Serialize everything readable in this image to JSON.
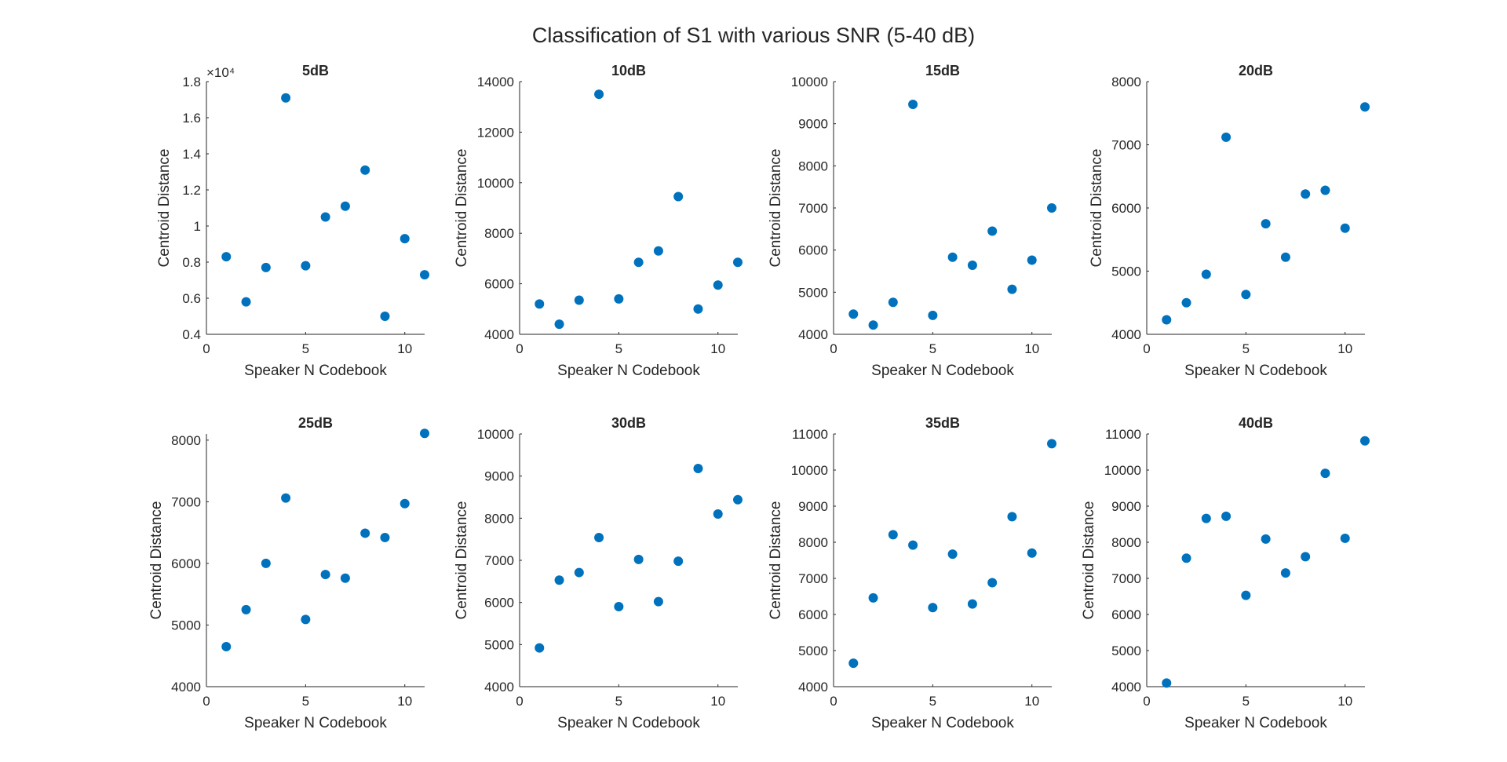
{
  "title": "Classification of S1 with various SNR (5-40 dB)",
  "colors": {
    "marker": "#0072bd",
    "axis": "#262626",
    "text": "#262626"
  },
  "chart_data": [
    {
      "type": "scatter",
      "title": "5dB",
      "xlabel": "Speaker N Codebook",
      "ylabel": "Centroid Distance",
      "xlim": [
        0,
        11
      ],
      "xticks": [
        0,
        5,
        10
      ],
      "ylim": [
        0.4,
        1.8
      ],
      "yticks": [
        0.4,
        0.6,
        0.8,
        1,
        1.2,
        1.4,
        1.6,
        1.8
      ],
      "ytick_labels": [
        "0.4",
        "0.6",
        "0.8",
        "1",
        "1.2",
        "1.4",
        "1.6",
        "1.8"
      ],
      "y_exponent_label": "×10⁴",
      "x": [
        1,
        2,
        3,
        4,
        5,
        6,
        7,
        8,
        9,
        10,
        11
      ],
      "y": [
        0.83,
        0.58,
        0.77,
        1.71,
        0.78,
        1.05,
        1.11,
        1.31,
        0.5,
        0.93,
        0.73
      ]
    },
    {
      "type": "scatter",
      "title": "10dB",
      "xlabel": "Speaker N Codebook",
      "ylabel": "Centroid Distance",
      "xlim": [
        0,
        11
      ],
      "xticks": [
        0,
        5,
        10
      ],
      "ylim": [
        4000,
        14000
      ],
      "yticks": [
        4000,
        6000,
        8000,
        10000,
        12000,
        14000
      ],
      "ytick_labels": [
        "4000",
        "6000",
        "8000",
        "10000",
        "12000",
        "14000"
      ],
      "x": [
        1,
        2,
        3,
        4,
        5,
        6,
        7,
        8,
        9,
        10,
        11
      ],
      "y": [
        5200,
        4400,
        5350,
        13500,
        5400,
        6850,
        7300,
        9450,
        5000,
        5950,
        6850
      ]
    },
    {
      "type": "scatter",
      "title": "15dB",
      "xlabel": "Speaker N Codebook",
      "ylabel": "Centroid Distance",
      "xlim": [
        0,
        11
      ],
      "xticks": [
        0,
        5,
        10
      ],
      "ylim": [
        4000,
        10000
      ],
      "yticks": [
        4000,
        5000,
        6000,
        7000,
        8000,
        9000,
        10000
      ],
      "ytick_labels": [
        "4000",
        "5000",
        "6000",
        "7000",
        "8000",
        "9000",
        "10000"
      ],
      "x": [
        1,
        2,
        3,
        4,
        5,
        6,
        7,
        8,
        9,
        10,
        11
      ],
      "y": [
        4480,
        4220,
        4760,
        9460,
        4450,
        5830,
        5640,
        6450,
        5070,
        5760,
        7000
      ]
    },
    {
      "type": "scatter",
      "title": "20dB",
      "xlabel": "Speaker N Codebook",
      "ylabel": "Centroid Distance",
      "xlim": [
        0,
        11
      ],
      "xticks": [
        0,
        5,
        10
      ],
      "ylim": [
        4000,
        8000
      ],
      "yticks": [
        4000,
        5000,
        6000,
        7000,
        8000
      ],
      "ytick_labels": [
        "4000",
        "5000",
        "6000",
        "7000",
        "8000"
      ],
      "x": [
        1,
        2,
        3,
        4,
        5,
        6,
        7,
        8,
        9,
        10,
        11
      ],
      "y": [
        4230,
        4500,
        4950,
        7120,
        4630,
        5750,
        5220,
        6220,
        6280,
        5680,
        7600
      ]
    },
    {
      "type": "scatter",
      "title": "25dB",
      "xlabel": "Speaker N Codebook",
      "ylabel": "Centroid Distance",
      "xlim": [
        0,
        11
      ],
      "xticks": [
        0,
        5,
        10
      ],
      "ylim": [
        4000,
        8100
      ],
      "yticks": [
        4000,
        5000,
        6000,
        7000,
        8000
      ],
      "ytick_labels": [
        "4000",
        "5000",
        "6000",
        "7000",
        "8000"
      ],
      "x": [
        1,
        2,
        3,
        4,
        5,
        6,
        7,
        8,
        9,
        10,
        11
      ],
      "y": [
        4650,
        5250,
        6000,
        7060,
        5090,
        5820,
        5760,
        6490,
        6420,
        6970,
        8110
      ]
    },
    {
      "type": "scatter",
      "title": "30dB",
      "xlabel": "Speaker N Codebook",
      "ylabel": "Centroid Distance",
      "xlim": [
        0,
        11
      ],
      "xticks": [
        0,
        5,
        10
      ],
      "ylim": [
        4000,
        10000
      ],
      "yticks": [
        4000,
        5000,
        6000,
        7000,
        8000,
        9000,
        10000
      ],
      "ytick_labels": [
        "4000",
        "5000",
        "6000",
        "7000",
        "8000",
        "9000",
        "10000"
      ],
      "x": [
        1,
        2,
        3,
        4,
        5,
        6,
        7,
        8,
        9,
        10,
        11
      ],
      "y": [
        4920,
        6530,
        6710,
        7540,
        5900,
        7020,
        6020,
        6980,
        9180,
        8100,
        8440
      ]
    },
    {
      "type": "scatter",
      "title": "35dB",
      "xlabel": "Speaker N Codebook",
      "ylabel": "Centroid Distance",
      "xlim": [
        0,
        11
      ],
      "xticks": [
        0,
        5,
        10
      ],
      "ylim": [
        4000,
        11000
      ],
      "yticks": [
        4000,
        5000,
        6000,
        7000,
        8000,
        9000,
        10000,
        11000
      ],
      "ytick_labels": [
        "4000",
        "5000",
        "6000",
        "7000",
        "8000",
        "9000",
        "10000",
        "11000"
      ],
      "x": [
        1,
        2,
        3,
        4,
        5,
        6,
        7,
        8,
        9,
        10,
        11
      ],
      "y": [
        4650,
        6460,
        8210,
        7920,
        6190,
        7670,
        6290,
        6880,
        8710,
        7700,
        10730
      ]
    },
    {
      "type": "scatter",
      "title": "40dB",
      "xlabel": "Speaker N Codebook",
      "ylabel": "Centroid Distance",
      "xlim": [
        0,
        11
      ],
      "xticks": [
        0,
        5,
        10
      ],
      "ylim": [
        4000,
        11000
      ],
      "yticks": [
        4000,
        5000,
        6000,
        7000,
        8000,
        9000,
        10000,
        11000
      ],
      "ytick_labels": [
        "4000",
        "5000",
        "6000",
        "7000",
        "8000",
        "9000",
        "10000",
        "11000"
      ],
      "x": [
        1,
        2,
        3,
        4,
        5,
        6,
        7,
        8,
        9,
        10,
        11
      ],
      "y": [
        4100,
        7560,
        8660,
        8720,
        6530,
        8090,
        7150,
        7600,
        9910,
        8110,
        10810
      ]
    }
  ]
}
